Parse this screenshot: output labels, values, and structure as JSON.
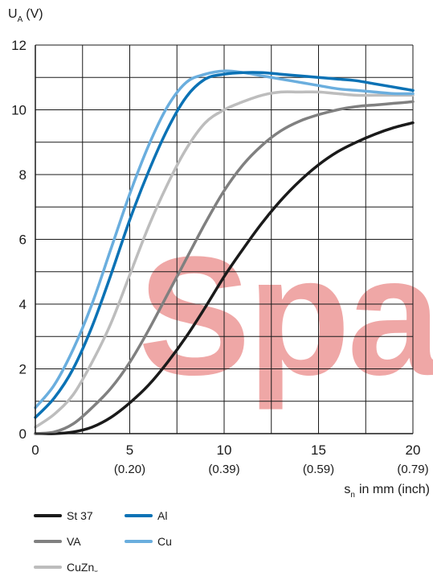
{
  "chart_data": {
    "type": "line",
    "y_axis_label": {
      "main": "U",
      "sub": "A",
      "unit": "(V)"
    },
    "x_axis_label": {
      "main": "s",
      "sub": "n",
      "rest": "in mm (inch)"
    },
    "xlim": [
      0,
      20
    ],
    "ylim": [
      0,
      12
    ],
    "grid": true,
    "legend_position": "bottom-left",
    "x_ticks": [
      0,
      5,
      10,
      15,
      20
    ],
    "x_tick_secondary": [
      "",
      "(0.20)",
      "(0.39)",
      "(0.59)",
      "(0.79)"
    ],
    "y_ticks": [
      0,
      2,
      4,
      6,
      8,
      10,
      12
    ],
    "watermark": "Spa",
    "series": [
      {
        "name": "St 37",
        "name_main": "St 37",
        "name_sub": "",
        "color": "#1a1a1a",
        "x": [
          0,
          1,
          2,
          3,
          4,
          5,
          6,
          7,
          8,
          9,
          10,
          11,
          12,
          13,
          14,
          15,
          16,
          17,
          18,
          19,
          20
        ],
        "y": [
          0,
          0,
          0.05,
          0.2,
          0.5,
          0.95,
          1.5,
          2.2,
          3.0,
          3.9,
          4.85,
          5.7,
          6.5,
          7.2,
          7.8,
          8.3,
          8.7,
          9.0,
          9.25,
          9.45,
          9.6
        ]
      },
      {
        "name": "VA",
        "name_main": "VA",
        "name_sub": "",
        "color": "#808080",
        "x": [
          0,
          1,
          2,
          3,
          4,
          5,
          6,
          7,
          8,
          9,
          10,
          11,
          12,
          13,
          14,
          15,
          16,
          17,
          18,
          19,
          20
        ],
        "y": [
          0,
          0.05,
          0.3,
          0.8,
          1.4,
          2.2,
          3.2,
          4.3,
          5.4,
          6.5,
          7.5,
          8.3,
          8.9,
          9.35,
          9.65,
          9.85,
          10.0,
          10.1,
          10.15,
          10.2,
          10.25
        ]
      },
      {
        "name": "CuZnx",
        "name_main": "CuZn",
        "name_sub": "x",
        "color": "#bdbdbd",
        "x": [
          0,
          1,
          2,
          3,
          4,
          5,
          6,
          7,
          8,
          9,
          10,
          11,
          12,
          13,
          14,
          15,
          16,
          17,
          18,
          19,
          20
        ],
        "y": [
          0.2,
          0.6,
          1.2,
          2.2,
          3.4,
          4.9,
          6.4,
          7.7,
          8.8,
          9.6,
          10.0,
          10.25,
          10.45,
          10.55,
          10.55,
          10.55,
          10.5,
          10.45,
          10.45,
          10.45,
          10.45
        ]
      },
      {
        "name": "Al",
        "name_main": "Al",
        "name_sub": "",
        "color": "#0b72b5",
        "x": [
          0,
          1,
          2,
          3,
          4,
          5,
          6,
          7,
          8,
          9,
          10,
          11,
          12,
          13,
          14,
          15,
          16,
          17,
          18,
          19,
          20
        ],
        "y": [
          0.5,
          1.1,
          2.0,
          3.3,
          4.9,
          6.6,
          8.1,
          9.4,
          10.4,
          10.95,
          11.1,
          11.15,
          11.15,
          11.1,
          11.05,
          11.0,
          10.95,
          10.9,
          10.8,
          10.7,
          10.6
        ]
      },
      {
        "name": "Cu",
        "name_main": "Cu",
        "name_sub": "",
        "color": "#6aaede",
        "x": [
          0,
          1,
          2,
          3,
          4,
          5,
          6,
          7,
          8,
          9,
          10,
          11,
          12,
          13,
          14,
          15,
          16,
          17,
          18,
          19,
          20
        ],
        "y": [
          0.8,
          1.5,
          2.6,
          4.0,
          5.7,
          7.4,
          8.9,
          10.1,
          10.85,
          11.1,
          11.2,
          11.15,
          11.05,
          10.95,
          10.85,
          10.75,
          10.65,
          10.6,
          10.55,
          10.5,
          10.5
        ]
      }
    ]
  }
}
